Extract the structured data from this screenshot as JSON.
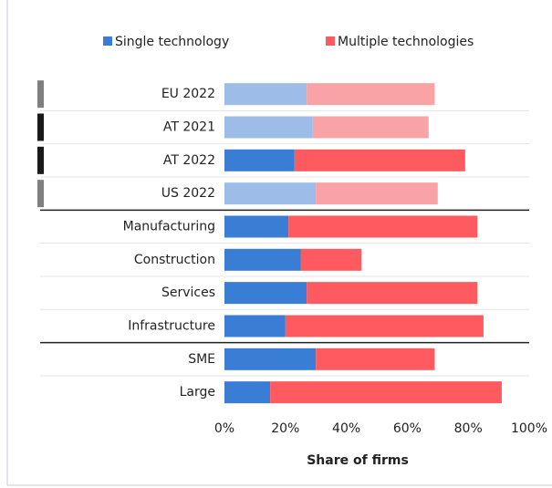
{
  "chart_data": {
    "type": "stacked_barh",
    "categories": [
      "EU 2022",
      "AT 2021",
      "AT 2022",
      "US 2022",
      "Manufacturing",
      "Construction",
      "Services",
      "Infrastructure",
      "SME",
      "Large"
    ],
    "series": [
      {
        "name": "Single technology",
        "color": "#3a7dd4",
        "colors": [
          "#9dbde8",
          "#9dbde8",
          "#3a7dd4",
          "#9dbde8",
          "#3a7dd4",
          "#3a7dd4",
          "#3a7dd4",
          "#3a7dd4",
          "#3a7dd4",
          "#3a7dd4"
        ],
        "values": [
          27,
          29,
          23,
          30,
          21,
          25,
          27,
          20,
          30,
          15
        ]
      },
      {
        "name": "Multiple technologies",
        "color": "#ff5a5f",
        "colors": [
          "#f9a3a7",
          "#f9a3a7",
          "#ff5a5f",
          "#f9a3a7",
          "#ff5a5f",
          "#ff5a5f",
          "#ff5a5f",
          "#ff5a5f",
          "#ff5a5f",
          "#ff5a5f"
        ],
        "values": [
          42,
          38,
          56,
          40,
          62,
          20,
          56,
          65,
          39,
          76
        ]
      }
    ],
    "marker_colors": [
      "#7f7f7f",
      "#1a1a1a",
      "#1a1a1a",
      "#7f7f7f",
      null,
      null,
      null,
      null,
      null,
      null
    ],
    "xlabel": "Share of firms",
    "xlim": [
      0,
      100
    ],
    "xticks": [
      {
        "value": 0,
        "label": "0%"
      },
      {
        "value": 20,
        "label": "20%"
      },
      {
        "value": 40,
        "label": "40%"
      },
      {
        "value": 60,
        "label": "60%"
      },
      {
        "value": 80,
        "label": "80%"
      },
      {
        "value": 100,
        "label": "100%"
      }
    ],
    "legend": "top"
  }
}
